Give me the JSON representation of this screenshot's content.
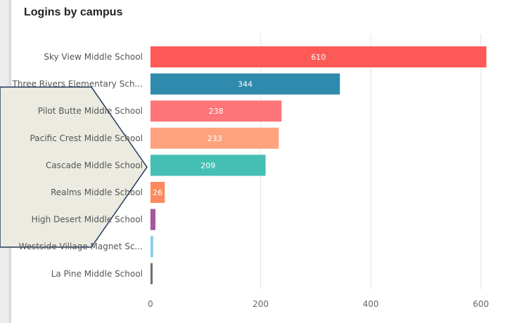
{
  "chart_data": {
    "type": "bar",
    "orientation": "horizontal",
    "title": "Logins by campus",
    "categories": [
      "Sky View Middle School",
      "Three Rivers Elementary Sch...",
      "Pilot Butte Middle School",
      "Pacific Crest Middle School",
      "Cascade Middle School",
      "Realms Middle School",
      "High Desert Middle School",
      "Westside Village Magnet Sc...",
      "La Pine Middle School"
    ],
    "values": [
      610,
      344,
      238,
      233,
      209,
      26,
      9,
      5,
      4
    ],
    "data_labels": [
      "610",
      "344",
      "238",
      "233",
      "209",
      "26",
      "",
      "",
      ""
    ],
    "colors": [
      "#fd5a57",
      "#2f8aad",
      "#fd7578",
      "#fea37e",
      "#45bfb4",
      "#fd8a5e",
      "#a4579a",
      "#88cdee",
      "#6d7373"
    ],
    "xlim": [
      0,
      640
    ],
    "xticks": [
      "0",
      "200",
      "400",
      "600"
    ],
    "grid": true
  }
}
